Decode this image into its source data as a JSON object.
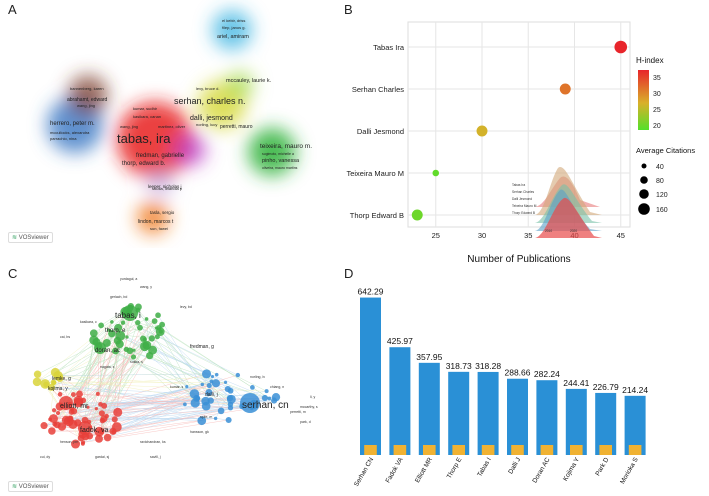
{
  "panel_letters": {
    "a": "A",
    "b": "B",
    "c": "C",
    "d": "D"
  },
  "vosviewer_label": "VOSviewer",
  "panel_a_clusters": [
    {
      "color": "#e8211d",
      "label": "tabas, ira",
      "size": "big"
    },
    {
      "color": "#3a76c3",
      "label": "herrero, peter m.",
      "size": "small"
    },
    {
      "color": "#7a3a2a",
      "label": "abrahamt, edward",
      "size": "small"
    },
    {
      "color": "#36b1e0",
      "label": "ariel, amiram",
      "size": "small"
    },
    {
      "color": "#c9d235",
      "label": "serhan, charles n.",
      "size": "medium"
    },
    {
      "color": "#b93cc9",
      "label": "fredman, gabrielle",
      "size": "small"
    },
    {
      "color": "#2eb13b",
      "label": "teixeira, mauro m.",
      "size": "small"
    },
    {
      "color": "#f07a1e",
      "label": "lindon, marcos t",
      "size": "small"
    },
    {
      "color": "#9fd84a",
      "label": "mccauley, laurie k.",
      "size": "small"
    }
  ],
  "panel_a_small_labels": [
    "el kebir, driss",
    "filep, janos g.",
    "bannenberg, karen",
    "wang, jing",
    "kumar, sudhir",
    "kasikara, canan",
    "wang, jing",
    "martinez, oliver",
    "levy, bruce d.",
    "norling, lucy",
    "dalli, jesmond",
    "perretti, mauro",
    "mccullocks, alexandra",
    "parrachio, nina",
    "thorp, edward b.",
    "pinho, vanessa",
    "sugimoto, michelle a",
    "oliveira, mauro martins",
    "sousa, lirlandia p",
    "leeper, nicholas j",
    "tasla, sergio",
    "sun, fawei"
  ],
  "panel_b": {
    "chart_data": {
      "type": "scatter",
      "title": "",
      "xlabel": "Number of Publications",
      "ylabel": "",
      "xlim": [
        22,
        46
      ],
      "xticks": [
        25,
        30,
        35,
        40,
        45
      ],
      "categories": [
        "Tabas Ira",
        "Serhan Charles",
        "Dalli Jesmond",
        "Teixeira Mauro M",
        "Thorp Edward B"
      ],
      "series": [
        {
          "name": "Tabas Ira",
          "x": 45,
          "h_index": 37,
          "avg_citations": 170
        },
        {
          "name": "Serhan Charles",
          "x": 39,
          "h_index": 31,
          "avg_citations": 110
        },
        {
          "name": "Dalli Jesmond",
          "x": 30,
          "h_index": 26,
          "avg_citations": 110
        },
        {
          "name": "Teixeira Mauro M",
          "x": 25,
          "h_index": 17,
          "avg_citations": 15
        },
        {
          "name": "Thorp Edward B",
          "x": 23,
          "h_index": 18,
          "avg_citations": 110
        }
      ],
      "legend_hindex_title": "H-index",
      "legend_hindex_ticks": [
        "35",
        "30",
        "25",
        "20"
      ],
      "legend_size_title": "Average Citations",
      "legend_size_values": [
        "40",
        "80",
        "120",
        "160"
      ],
      "inset_labels": [
        "Tabas Ira",
        "Serhan Charles",
        "Dalli Jesmond",
        "Teixeira Mauro M",
        "Thorp Edward B"
      ],
      "inset_ticks": [
        "2010",
        "2020"
      ]
    },
    "colors": {
      "low": "#54e02a",
      "high": "#e8252b"
    }
  },
  "panel_c_labels": {
    "serhan": "serhan, cn",
    "tabas": "tabas, i",
    "fredman": "fredman, g",
    "thorp": "thorp, e",
    "fadok": "fadok, va",
    "elliott": "elliott, mr",
    "doran": "doran, ac",
    "lemke": "lemke, g",
    "kojima": "kojima, y",
    "dalli": "dalli, j",
    "misc": [
      "gerlach, bd",
      "wang, y",
      "yurdagul, a",
      "kasikara, c",
      "cai, bs",
      "sukka, s",
      "nagata, s",
      "ravichandran, ks",
      "savill, j",
      "gardai, sj",
      "levy, bd",
      "spite, m",
      "norling, lv",
      "chiang, n",
      "perretti, m",
      "park, d",
      "hansson, gk",
      "henson, pm",
      "cui, dy",
      "kumar, s",
      "mccarthy, s",
      "li, y"
    ]
  },
  "panel_d": {
    "chart_data": {
      "type": "bar",
      "categories": [
        "Serhan CN",
        "Fadok VA",
        "Elliott MR",
        "Thorp E",
        "Tabas I",
        "Dalli J",
        "Doran AC",
        "Kojima Y",
        "Park D",
        "Morioka S"
      ],
      "values": [
        642.29,
        425.97,
        357.95,
        318.73,
        318.28,
        288.66,
        282.24,
        244.41,
        226.79,
        214.24
      ],
      "value_labels": [
        "642.29",
        "425.97",
        "357.95",
        "318.73",
        "318.28",
        "288.66",
        "282.24",
        "244.41",
        "226.79",
        "214.24"
      ],
      "ylim": [
        0,
        660
      ],
      "title": "",
      "xlabel": "",
      "ylabel": ""
    },
    "colors": {
      "bar": "#2a90d6",
      "base": "#f0b232"
    }
  }
}
